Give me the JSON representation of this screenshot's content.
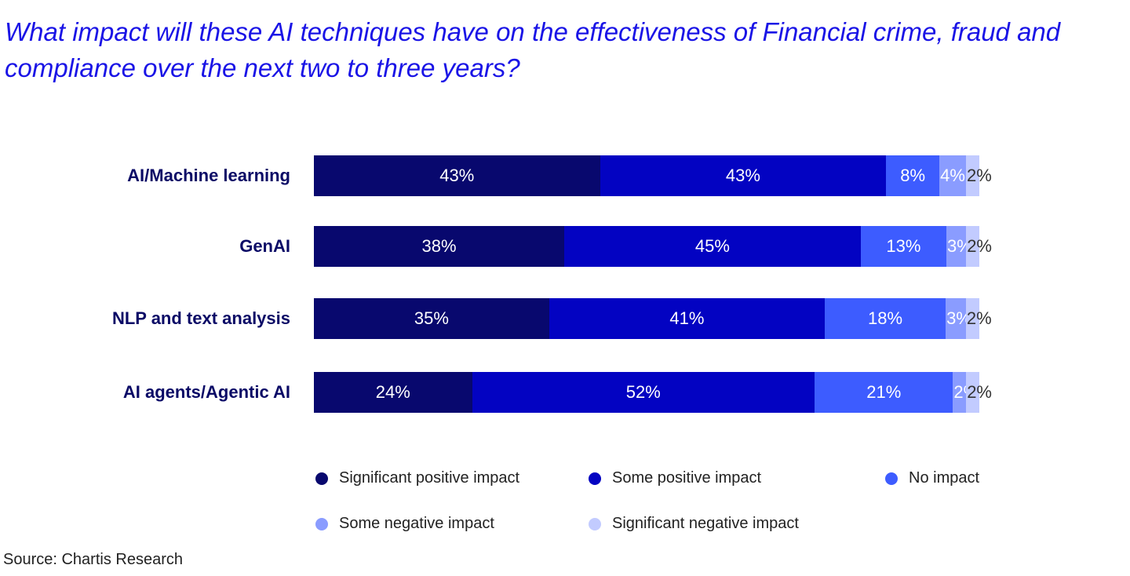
{
  "chart_data": {
    "type": "bar",
    "orientation": "horizontal",
    "stacked": true,
    "title": "What impact will these AI techniques have on the effectiveness of Financial crime, fraud and compliance over the next two to three years?",
    "categories": [
      "AI/Machine learning",
      "GenAI",
      "NLP and text analysis",
      "AI agents/Agentic AI"
    ],
    "series": [
      {
        "name": "Significant positive impact",
        "color": "#08086e",
        "values": [
          43,
          38,
          35,
          24
        ],
        "labels": [
          "43%",
          "38%",
          "35%",
          "24%"
        ]
      },
      {
        "name": "Some positive impact",
        "color": "#0303c2",
        "values": [
          43,
          45,
          41,
          52
        ],
        "labels": [
          "43%",
          "45%",
          "41%",
          "52%"
        ]
      },
      {
        "name": "No impact",
        "color": "#3d5cff",
        "values": [
          8,
          13,
          18,
          21
        ],
        "labels": [
          "8%",
          "13%",
          "18%",
          "21%"
        ]
      },
      {
        "name": "Some negative impact",
        "color": "#8a9cff",
        "values": [
          4,
          3,
          3,
          2
        ],
        "labels": [
          "4%",
          "3%",
          "3%",
          "2%"
        ]
      },
      {
        "name": "Significant negative impact",
        "color": "#c2cbff",
        "values": [
          2,
          2,
          2,
          2
        ],
        "labels": [
          "2%",
          "2%",
          "2%",
          "2%"
        ]
      }
    ],
    "legend": "bottom",
    "grid": false,
    "source": "Source: Chartis Research"
  }
}
